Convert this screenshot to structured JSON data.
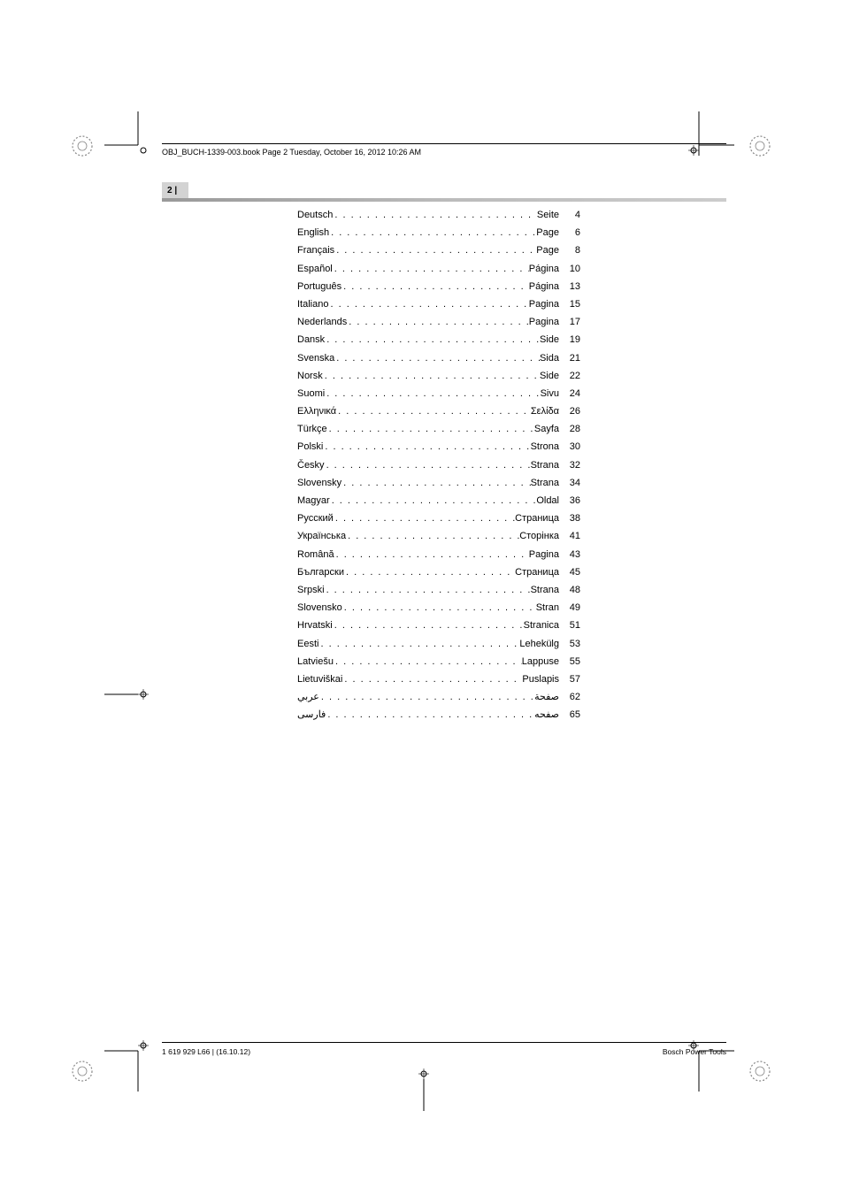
{
  "header": {
    "file_info": "OBJ_BUCH-1339-003.book  Page 2  Tuesday, October 16, 2012  10:26 AM"
  },
  "page_marker": {
    "label": "2 |"
  },
  "toc": {
    "entries": [
      {
        "language": "Deutsch",
        "page_label": "Seite",
        "page_num": "4"
      },
      {
        "language": "English",
        "page_label": "Page",
        "page_num": "6"
      },
      {
        "language": "Français",
        "page_label": "Page",
        "page_num": "8"
      },
      {
        "language": "Español",
        "page_label": "Página",
        "page_num": "10"
      },
      {
        "language": "Português",
        "page_label": "Página",
        "page_num": "13"
      },
      {
        "language": "Italiano",
        "page_label": "Pagina",
        "page_num": "15"
      },
      {
        "language": "Nederlands",
        "page_label": "Pagina",
        "page_num": "17"
      },
      {
        "language": "Dansk",
        "page_label": "Side",
        "page_num": "19"
      },
      {
        "language": "Svenska",
        "page_label": "Sida",
        "page_num": "21"
      },
      {
        "language": "Norsk",
        "page_label": "Side",
        "page_num": "22"
      },
      {
        "language": "Suomi",
        "page_label": "Sivu",
        "page_num": "24"
      },
      {
        "language": "Ελληνικά",
        "page_label": "Σελίδα",
        "page_num": "26"
      },
      {
        "language": "Türkçe",
        "page_label": "Sayfa",
        "page_num": "28"
      },
      {
        "language": "Polski",
        "page_label": "Strona",
        "page_num": "30"
      },
      {
        "language": "Česky",
        "page_label": "Strana",
        "page_num": "32"
      },
      {
        "language": "Slovensky",
        "page_label": "Strana",
        "page_num": "34"
      },
      {
        "language": "Magyar",
        "page_label": "Oldal",
        "page_num": "36"
      },
      {
        "language": "Русский",
        "page_label": "Страница",
        "page_num": "38"
      },
      {
        "language": "Українська",
        "page_label": "Сторінка",
        "page_num": "41"
      },
      {
        "language": "Română",
        "page_label": "Pagina",
        "page_num": "43"
      },
      {
        "language": "Български",
        "page_label": "Страница",
        "page_num": "45"
      },
      {
        "language": "Srpski",
        "page_label": "Strana",
        "page_num": "48"
      },
      {
        "language": "Slovensko",
        "page_label": "Stran",
        "page_num": "49"
      },
      {
        "language": "Hrvatski",
        "page_label": "Stranica",
        "page_num": "51"
      },
      {
        "language": "Eesti",
        "page_label": "Lehekülg",
        "page_num": "53"
      },
      {
        "language": "Latviešu",
        "page_label": "Lappuse",
        "page_num": "55"
      },
      {
        "language": "Lietuviškai",
        "page_label": "Puslapis",
        "page_num": "57"
      },
      {
        "language": "عربي",
        "page_label": "صفحة",
        "page_num": "62"
      },
      {
        "language": "فارسی",
        "page_label": "صفحه",
        "page_num": "65"
      }
    ]
  },
  "footer": {
    "left": "1 619 929 L66 | (16.10.12)",
    "right": "Bosch Power Tools"
  },
  "colors": {
    "text": "#000000",
    "page_box_bg": "#d3d3d3",
    "hr_gradient_start": "#999999",
    "hr_gradient_end": "#cccccc",
    "background": "#ffffff"
  },
  "typography": {
    "toc_fontsize": 11,
    "header_fontsize": 9,
    "footer_fontsize": 8.5,
    "font_family": "Arial"
  }
}
